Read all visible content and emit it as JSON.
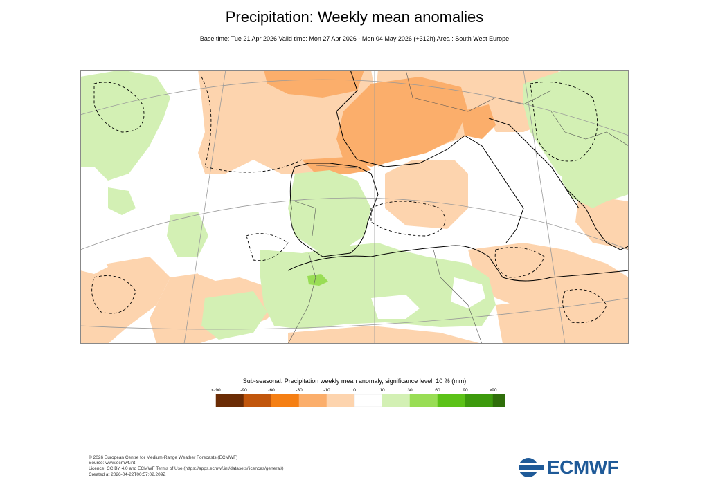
{
  "title": "Precipitation: Weekly mean anomalies",
  "subtitle": "Base time: Tue 21 Apr 2026 Valid time: Mon 27 Apr 2026 - Mon 04 May 2026 (+312h) Area : South West Europe",
  "legend": {
    "title": "Sub-seasonal: Precipitation weekly mean anomaly, significance level: 10 % (mm)",
    "tick_labels": [
      "<-90",
      "-90",
      "-60",
      "-30",
      "-10",
      "0",
      "10",
      "30",
      "60",
      "90",
      ">90"
    ],
    "colors": [
      "#6b2c05",
      "#c1560c",
      "#f57f13",
      "#fbae6b",
      "#fdd4ae",
      "#ffffff",
      "#d3f0b4",
      "#99dd55",
      "#5cc218",
      "#3d9a0d",
      "#2f6e0a"
    ]
  },
  "map_colors": {
    "dry_light": "#fdd4ae",
    "dry_medium": "#fbae6b",
    "wet_light": "#d3f0b4",
    "wet_medium": "#99dd55",
    "coastline": "#000000",
    "border": "#555555",
    "grid": "#999999"
  },
  "footer": {
    "line1": "© 2026 European Centre for Medium-Range Weather Forecasts (ECMWF)",
    "line2": "Source: www.ecmwf.int",
    "line3": "Licence: CC BY 4.0 and ECMWF Terms of Use (https://apps.ecmwf.int/datasets/licences/general/)",
    "line4": "Created at 2026-04-22T00:57:02.209Z"
  },
  "logo": {
    "text": "ECMWF",
    "color": "#1f5a98",
    "icon": "ecmwf-logo-icon"
  }
}
